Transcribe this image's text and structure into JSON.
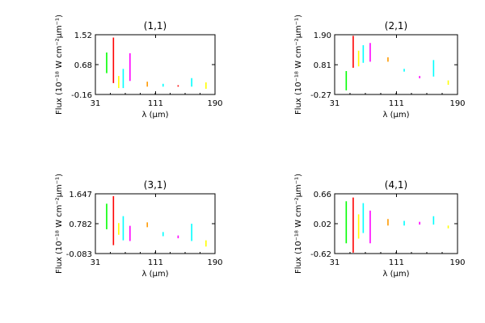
{
  "chart_data": [
    {
      "type": "line",
      "title": "(1,1)",
      "xlabel": "λ (μm)",
      "ylabel": "Flux (10⁻¹⁸ W cm⁻²μm⁻¹)",
      "xlim": [
        31,
        190
      ],
      "ylim": [
        -0.16,
        1.52
      ],
      "xticks": [
        "31",
        "111",
        "190"
      ],
      "yticks": [
        "-0.16",
        "0.68",
        "1.52"
      ],
      "segments": [
        {
          "x": 46,
          "ymin": 0.44,
          "ymax": 1.02,
          "color": "#00ff00"
        },
        {
          "x": 55,
          "ymin": 0.16,
          "ymax": 1.44,
          "color": "#ff0000"
        },
        {
          "x": 62,
          "ymin": 0.02,
          "ymax": 0.36,
          "color": "#ffff00"
        },
        {
          "x": 68,
          "ymin": 0.02,
          "ymax": 0.56,
          "color": "#00ffff"
        },
        {
          "x": 77,
          "ymin": 0.22,
          "ymax": 1.0,
          "color": "#ff00ff"
        },
        {
          "x": 100,
          "ymin": 0.06,
          "ymax": 0.2,
          "color": "#ff9900"
        },
        {
          "x": 121,
          "ymin": 0.06,
          "ymax": 0.14,
          "color": "#00ffff"
        },
        {
          "x": 141,
          "ymin": 0.06,
          "ymax": 0.1,
          "color": "#ff0000"
        },
        {
          "x": 159,
          "ymin": 0.06,
          "ymax": 0.3,
          "color": "#00ffff"
        },
        {
          "x": 178,
          "ymin": 0.0,
          "ymax": 0.18,
          "color": "#ffff00"
        }
      ]
    },
    {
      "type": "line",
      "title": "(2,1)",
      "xlabel": "λ (μm)",
      "ylabel": "Flux (10⁻¹⁸ W cm⁻²μm⁻¹)",
      "xlim": [
        31,
        190
      ],
      "ylim": [
        -0.27,
        1.9
      ],
      "xticks": [
        "31",
        "111",
        "190"
      ],
      "yticks": [
        "-0.27",
        "0.81",
        "1.90"
      ],
      "segments": [
        {
          "x": 46,
          "ymin": -0.12,
          "ymax": 0.58,
          "color": "#00ff00"
        },
        {
          "x": 55,
          "ymin": 0.7,
          "ymax": 1.86,
          "color": "#ff0000"
        },
        {
          "x": 62,
          "ymin": 0.75,
          "ymax": 1.32,
          "color": "#ffff00"
        },
        {
          "x": 68,
          "ymin": 0.88,
          "ymax": 1.52,
          "color": "#00ffff"
        },
        {
          "x": 77,
          "ymin": 0.92,
          "ymax": 1.6,
          "color": "#ff00ff"
        },
        {
          "x": 100,
          "ymin": 0.92,
          "ymax": 1.08,
          "color": "#ff9900"
        },
        {
          "x": 121,
          "ymin": 0.56,
          "ymax": 0.66,
          "color": "#00ffff"
        },
        {
          "x": 141,
          "ymin": 0.32,
          "ymax": 0.4,
          "color": "#ff00ff"
        },
        {
          "x": 159,
          "ymin": 0.38,
          "ymax": 0.98,
          "color": "#00ffff"
        },
        {
          "x": 178,
          "ymin": 0.08,
          "ymax": 0.24,
          "color": "#ffff00"
        }
      ]
    },
    {
      "type": "line",
      "title": "(3,1)",
      "xlabel": "λ (μm)",
      "ylabel": "Flux (10⁻¹⁸ W cm⁻²μm⁻¹)",
      "xlim": [
        31,
        190
      ],
      "ylim": [
        -0.083,
        1.647
      ],
      "xticks": [
        "31",
        "111",
        "190"
      ],
      "yticks": [
        "-0.083",
        "0.782",
        "1.647"
      ],
      "segments": [
        {
          "x": 46,
          "ymin": 0.62,
          "ymax": 1.36,
          "color": "#00ff00"
        },
        {
          "x": 55,
          "ymin": 0.16,
          "ymax": 1.58,
          "color": "#ff0000"
        },
        {
          "x": 62,
          "ymin": 0.46,
          "ymax": 0.8,
          "color": "#ffff00"
        },
        {
          "x": 68,
          "ymin": 0.3,
          "ymax": 1.0,
          "color": "#00ffff"
        },
        {
          "x": 77,
          "ymin": 0.28,
          "ymax": 0.72,
          "color": "#ff00ff"
        },
        {
          "x": 100,
          "ymin": 0.68,
          "ymax": 0.82,
          "color": "#ff9900"
        },
        {
          "x": 121,
          "ymin": 0.42,
          "ymax": 0.54,
          "color": "#00ffff"
        },
        {
          "x": 141,
          "ymin": 0.36,
          "ymax": 0.44,
          "color": "#ff00ff"
        },
        {
          "x": 159,
          "ymin": 0.28,
          "ymax": 0.78,
          "color": "#00ffff"
        },
        {
          "x": 178,
          "ymin": 0.12,
          "ymax": 0.3,
          "color": "#ffff00"
        }
      ]
    },
    {
      "type": "line",
      "title": "(4,1)",
      "xlabel": "λ (μm)",
      "ylabel": "Flux (10⁻¹⁸ W cm⁻²μm⁻¹)",
      "xlim": [
        31,
        190
      ],
      "ylim": [
        -0.62,
        0.66
      ],
      "xticks": [
        "31",
        "111",
        "190"
      ],
      "yticks": [
        "-0.62",
        "0.02",
        "0.66"
      ],
      "segments": [
        {
          "x": 46,
          "ymin": -0.4,
          "ymax": 0.5,
          "color": "#00ff00"
        },
        {
          "x": 55,
          "ymin": -0.6,
          "ymax": 0.58,
          "color": "#ff0000"
        },
        {
          "x": 62,
          "ymin": -0.3,
          "ymax": 0.22,
          "color": "#ffff00"
        },
        {
          "x": 68,
          "ymin": -0.18,
          "ymax": 0.46,
          "color": "#00ffff"
        },
        {
          "x": 77,
          "ymin": -0.4,
          "ymax": 0.3,
          "color": "#ff00ff"
        },
        {
          "x": 100,
          "ymin": -0.02,
          "ymax": 0.12,
          "color": "#ff9900"
        },
        {
          "x": 121,
          "ymin": -0.02,
          "ymax": 0.08,
          "color": "#00ffff"
        },
        {
          "x": 141,
          "ymin": 0.0,
          "ymax": 0.06,
          "color": "#ff00ff"
        },
        {
          "x": 159,
          "ymin": 0.0,
          "ymax": 0.18,
          "color": "#00ffff"
        },
        {
          "x": 178,
          "ymin": -0.08,
          "ymax": -0.02,
          "color": "#ffff00"
        }
      ]
    }
  ]
}
